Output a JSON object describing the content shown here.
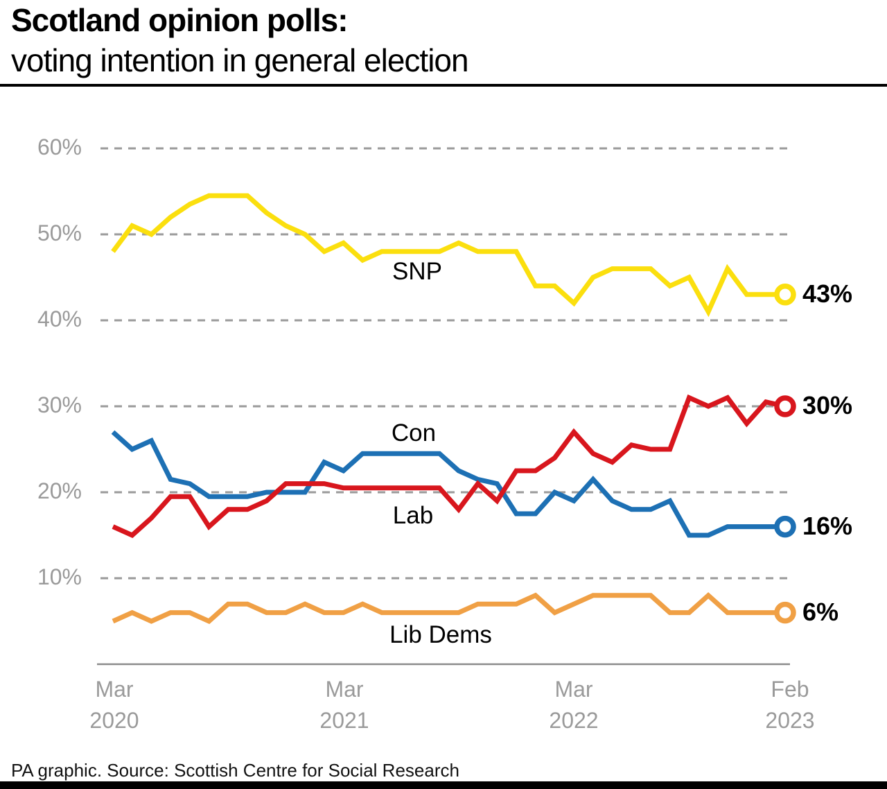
{
  "header": {
    "title_line1": "Scotland opinion polls:",
    "title_line2": "voting intention in general election"
  },
  "chart_data": {
    "type": "line",
    "title": "Scotland opinion polls: voting intention in general election",
    "unit": "%",
    "grid": "horizontal dashed",
    "grid_color": "#9a9a9a",
    "axis_label_color": "#9a9a9a",
    "legend_position": "inline labels on chart",
    "x": [
      "Mar 2020",
      "Apr 2020",
      "May 2020",
      "Jun 2020",
      "Jul 2020",
      "Aug 2020",
      "Sep 2020",
      "Oct 2020",
      "Nov 2020",
      "Dec 2020",
      "Jan 2021",
      "Feb 2021",
      "Mar 2021",
      "Apr 2021",
      "May 2021",
      "Jun 2021",
      "Jul 2021",
      "Aug 2021",
      "Sep 2021",
      "Oct 2021",
      "Nov 2021",
      "Dec 2021",
      "Jan 2022",
      "Feb 2022",
      "Mar 2022",
      "Apr 2022",
      "May 2022",
      "Jun 2022",
      "Jul 2022",
      "Aug 2022",
      "Sep 2022",
      "Oct 2022",
      "Nov 2022",
      "Dec 2022",
      "Jan 2023",
      "Feb 2023"
    ],
    "xaxis_ticks": [
      {
        "month": "Mar",
        "year": "2020"
      },
      {
        "month": "Mar",
        "year": "2021"
      },
      {
        "month": "Mar",
        "year": "2022"
      },
      {
        "month": "Feb",
        "year": "2023"
      }
    ],
    "yaxis": {
      "ticks": [
        60,
        50,
        40,
        30,
        20,
        10
      ],
      "tick_labels": [
        "60%",
        "50%",
        "40%",
        "30%",
        "20%",
        "10%"
      ],
      "range_shown": [
        0,
        63
      ]
    },
    "series": [
      {
        "name": "SNP",
        "color": "#fbdf0e",
        "end_label": "43%",
        "end_value": 43,
        "values": [
          48,
          51,
          50,
          52,
          53.5,
          54.5,
          54.5,
          54.5,
          52.5,
          51,
          50,
          48,
          49,
          47,
          48,
          48,
          48,
          48,
          49,
          48,
          48,
          48,
          44,
          44,
          42,
          45,
          46,
          46,
          46,
          44,
          45,
          41,
          46,
          43,
          43,
          43
        ]
      },
      {
        "name": "Con",
        "color": "#d8161d",
        "end_label": "30%",
        "end_value": 30,
        "values": [
          16,
          15,
          17,
          19.5,
          19.5,
          16,
          18,
          18,
          19,
          21,
          21,
          21,
          20.5,
          20.5,
          20.5,
          20.5,
          20.5,
          20.5,
          18,
          21,
          19,
          22.5,
          22.5,
          24,
          27,
          24.5,
          23.5,
          25.5,
          25,
          25,
          31,
          30,
          31,
          28,
          30.5,
          30
        ]
      },
      {
        "name": "Lab",
        "color": "#1d70b4",
        "end_label": "16%",
        "end_value": 16,
        "values": [
          27,
          25,
          26,
          21.5,
          21,
          19.5,
          19.5,
          19.5,
          20,
          20,
          20,
          23.5,
          22.5,
          24.5,
          24.5,
          24.5,
          24.5,
          24.5,
          22.5,
          21.5,
          21,
          17.5,
          17.5,
          20,
          19,
          21.5,
          19,
          18,
          18,
          19,
          15,
          15,
          16,
          16,
          16,
          16
        ]
      },
      {
        "name": "Lib Dems",
        "color": "#f0a045",
        "end_label": "6%",
        "end_value": 6,
        "values": [
          5,
          6,
          5,
          6,
          6,
          5,
          7,
          7,
          6,
          6,
          7,
          6,
          6,
          7,
          6,
          6,
          6,
          6,
          6,
          7,
          7,
          7,
          8,
          6,
          7,
          8,
          8,
          8,
          8,
          6,
          6,
          8,
          6,
          6,
          6,
          6
        ]
      }
    ]
  },
  "footer": {
    "source": "PA graphic. Source: Scottish Centre for Social Research"
  }
}
